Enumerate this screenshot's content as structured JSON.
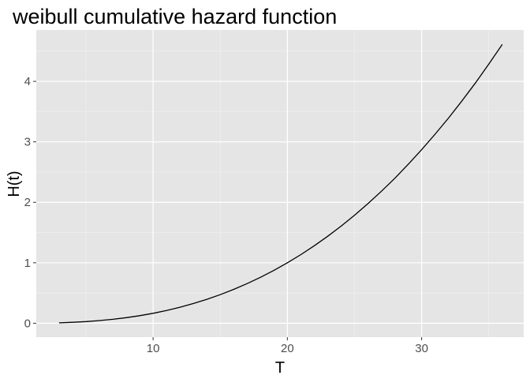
{
  "chart_data": {
    "type": "line",
    "title": "weibull cumulative hazard function",
    "xlabel": "T",
    "ylabel": "H(t)",
    "xlim": [
      1.3,
      37.6
    ],
    "ylim": [
      -0.23,
      4.85
    ],
    "xticks": [
      10,
      20,
      30
    ],
    "yticks": [
      0,
      1,
      2,
      3,
      4
    ],
    "grid": true,
    "colors": {
      "panel": "#e5e5e5",
      "grid": "#ffffff",
      "line": "#000000"
    },
    "series": [
      {
        "x": [
          3,
          4,
          5,
          6,
          7,
          8,
          9,
          10,
          11,
          12,
          13,
          14,
          15,
          16,
          17,
          18,
          19,
          20,
          21,
          22,
          23,
          24,
          25,
          26,
          27,
          28,
          29,
          30,
          31,
          32,
          33,
          34,
          35,
          36
        ],
        "y": [
          0.007,
          0.015,
          0.027,
          0.044,
          0.065,
          0.092,
          0.125,
          0.165,
          0.211,
          0.265,
          0.326,
          0.396,
          0.473,
          0.56,
          0.655,
          0.76,
          0.875,
          1.0,
          1.135,
          1.281,
          1.438,
          1.606,
          1.786,
          1.978,
          2.182,
          2.398,
          2.628,
          2.87,
          3.126,
          3.394,
          3.677,
          3.973,
          4.284,
          4.611
        ]
      }
    ]
  }
}
